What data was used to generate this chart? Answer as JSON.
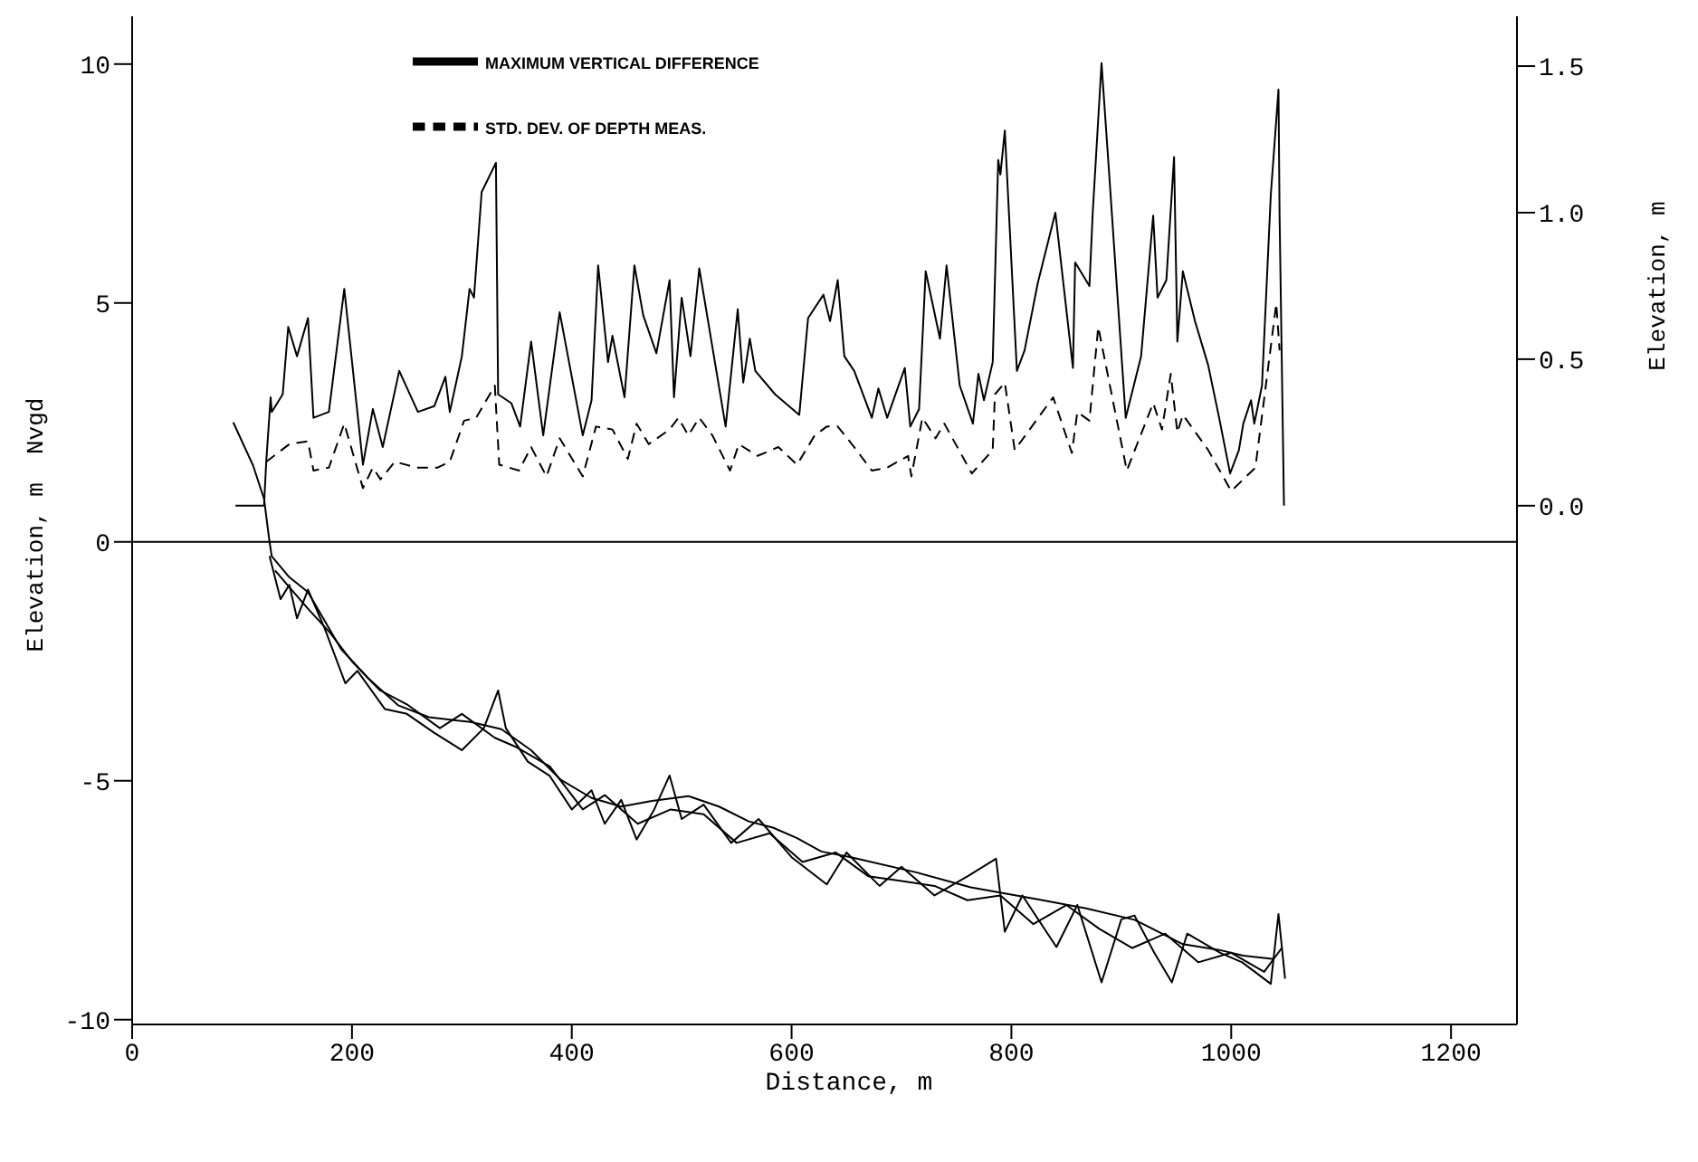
{
  "chart_data": {
    "type": "line",
    "xlabel": "Distance, m",
    "ylabel": "Elevation, m  Nvgd",
    "y2label": "Elevation, m",
    "xlim": [
      0,
      1260
    ],
    "xticks": [
      0,
      200,
      400,
      600,
      800,
      1000,
      1200
    ],
    "ylim": [
      -10.1,
      11
    ],
    "yticks": [
      -10,
      -5,
      0,
      5,
      10
    ],
    "y2lim": [
      -1.77,
      1.67
    ],
    "y2ticks": [
      {
        "value": 0,
        "label": "0.0"
      },
      {
        "value": 0.5,
        "label": "0.5"
      },
      {
        "value": 1,
        "label": "1.0"
      },
      {
        "value": 1.5,
        "label": "1.5"
      }
    ],
    "grid": false,
    "legend": "top",
    "marker": "none",
    "ref_lines": [
      {
        "axis": "y",
        "value": 0,
        "color": "#000000"
      }
    ],
    "series": [
      {
        "name": "MAXIMUM VERTICAL DIFFERENCE",
        "axis": "y2",
        "color": "#000000",
        "line_style": "solid",
        "x": [
          94,
          120,
          122,
          126,
          127,
          137,
          142,
          150,
          160,
          165,
          179,
          193,
          210,
          219,
          228,
          243,
          260,
          275,
          285,
          289,
          300,
          307,
          311,
          318,
          331,
          333,
          345,
          353,
          363,
          374,
          389,
          410,
          418,
          424,
          433,
          437,
          448,
          457,
          465,
          477,
          489,
          493,
          500,
          508,
          516,
          528,
          540,
          551,
          556,
          562,
          567,
          585,
          607,
          615,
          629,
          635,
          642,
          648,
          657,
          673,
          679,
          687,
          703,
          708,
          716,
          722,
          735,
          741,
          753,
          765,
          770,
          775,
          783,
          788,
          790,
          794,
          805,
          812,
          824,
          840,
          856,
          858,
          871,
          874,
          882,
          889,
          904,
          918,
          929,
          933,
          941,
          948,
          951,
          956,
          967,
          979,
          989,
          999,
          1007,
          1011,
          1018,
          1021,
          1028,
          1036,
          1043,
          1044,
          1048
        ],
        "values": [
          0,
          0,
          0.15,
          0.37,
          0.32,
          0.38,
          0.61,
          0.51,
          0.64,
          0.3,
          0.32,
          0.74,
          0.14,
          0.33,
          0.2,
          0.46,
          0.32,
          0.34,
          0.44,
          0.32,
          0.51,
          0.74,
          0.71,
          1.07,
          1.17,
          0.38,
          0.35,
          0.27,
          0.56,
          0.24,
          0.66,
          0.24,
          0.36,
          0.82,
          0.49,
          0.58,
          0.37,
          0.82,
          0.65,
          0.52,
          0.77,
          0.37,
          0.71,
          0.51,
          0.81,
          0.54,
          0.27,
          0.67,
          0.42,
          0.57,
          0.46,
          0.38,
          0.31,
          0.64,
          0.72,
          0.63,
          0.77,
          0.51,
          0.46,
          0.3,
          0.4,
          0.3,
          0.47,
          0.27,
          0.33,
          0.8,
          0.57,
          0.82,
          0.41,
          0.28,
          0.45,
          0.36,
          0.49,
          1.18,
          1.13,
          1.28,
          0.46,
          0.53,
          0.76,
          1,
          0.47,
          0.83,
          0.75,
          1,
          1.51,
          1.13,
          0.3,
          0.51,
          0.99,
          0.71,
          0.77,
          1.19,
          0.56,
          0.8,
          0.63,
          0.48,
          0.3,
          0.11,
          0.19,
          0.28,
          0.36,
          0.28,
          0.41,
          1.06,
          1.42,
          0.99,
          0
        ]
      },
      {
        "name": "STD. DEV. OF DEPTH MEAS.",
        "axis": "y2",
        "color": "#000000",
        "line_style": "dashed",
        "x": [
          122,
          143,
          160,
          165,
          179,
          193,
          210,
          219,
          226,
          239,
          259,
          278,
          289,
          302,
          313,
          330,
          334,
          352,
          363,
          377,
          389,
          410,
          422,
          437,
          451,
          459,
          470,
          489,
          497,
          506,
          516,
          528,
          544,
          552,
          569,
          588,
          605,
          621,
          632,
          642,
          657,
          673,
          687,
          706,
          709,
          719,
          731,
          739,
          764,
          783,
          785,
          794,
          803,
          838,
          855,
          860,
          871,
          879,
          905,
          929,
          937,
          945,
          951,
          956,
          979,
          1000,
          1022,
          1041,
          1044
        ],
        "values": [
          0.15,
          0.21,
          0.22,
          0.12,
          0.13,
          0.28,
          0.06,
          0.13,
          0.09,
          0.15,
          0.13,
          0.13,
          0.15,
          0.29,
          0.3,
          0.41,
          0.14,
          0.12,
          0.2,
          0.1,
          0.23,
          0.1,
          0.27,
          0.26,
          0.16,
          0.28,
          0.21,
          0.26,
          0.3,
          0.24,
          0.3,
          0.24,
          0.12,
          0.21,
          0.17,
          0.2,
          0.14,
          0.24,
          0.27,
          0.27,
          0.2,
          0.12,
          0.13,
          0.17,
          0.1,
          0.3,
          0.23,
          0.28,
          0.11,
          0.19,
          0.38,
          0.42,
          0.19,
          0.37,
          0.18,
          0.32,
          0.29,
          0.61,
          0.12,
          0.35,
          0.26,
          0.45,
          0.25,
          0.31,
          0.19,
          0.05,
          0.13,
          0.69,
          0.53
        ]
      },
      {
        "color": "#000000",
        "line_style": "solid",
        "x": [
          92,
          110,
          120,
          125,
          127,
          143,
          160,
          190,
          215,
          242,
          270,
          308,
          336,
          363,
          390,
          418,
          445,
          473,
          506,
          534,
          561,
          583,
          605,
          627,
          654,
          714,
          763,
          824,
          868,
          912,
          956,
          989,
          1011,
          1039
        ],
        "values": [
          2.5,
          1.6,
          0.9,
          0,
          -0.3,
          -0.74,
          -1.05,
          -2.24,
          -2.86,
          -3.42,
          -3.67,
          -3.77,
          -3.92,
          -4.36,
          -4.98,
          -5.36,
          -5.54,
          -5.42,
          -5.32,
          -5.54,
          -5.85,
          -5.98,
          -6.2,
          -6.48,
          -6.6,
          -6.92,
          -7.23,
          -7.48,
          -7.67,
          -7.91,
          -8.42,
          -8.54,
          -8.66,
          -8.73
        ]
      },
      {
        "color": "#000000",
        "line_style": "solid",
        "x": [
          125,
          135,
          143,
          150,
          160,
          175,
          194,
          205,
          230,
          250,
          275,
          300,
          320,
          333,
          340,
          360,
          380,
          400,
          418,
          430,
          445,
          459,
          475,
          489,
          500,
          520,
          545,
          570,
          600,
          632,
          650,
          680,
          700,
          730,
          760,
          786,
          794,
          810,
          841,
          860,
          882,
          900,
          912,
          930,
          946,
          960,
          990,
          1010,
          1036,
          1043,
          1049
        ],
        "values": [
          -0.3,
          -1.2,
          -0.9,
          -1.6,
          -1,
          -1.8,
          -2.96,
          -2.7,
          -3.5,
          -3.6,
          -4,
          -4.36,
          -3.9,
          -3.11,
          -3.9,
          -4.6,
          -4.9,
          -5.6,
          -5.2,
          -5.9,
          -5.4,
          -6.23,
          -5.6,
          -4.89,
          -5.8,
          -5.5,
          -6.3,
          -5.8,
          -6.6,
          -7.17,
          -6.5,
          -7.2,
          -6.8,
          -7.4,
          -7,
          -6.63,
          -8.16,
          -7.4,
          -8.48,
          -7.6,
          -9.22,
          -7.9,
          -7.82,
          -8.6,
          -9.22,
          -8.2,
          -8.6,
          -8.8,
          -9.25,
          -7.79,
          -9.14
        ]
      },
      {
        "color": "#000000",
        "line_style": "solid",
        "x": [
          130,
          145,
          160,
          180,
          200,
          225,
          250,
          280,
          300,
          330,
          350,
          380,
          410,
          430,
          460,
          490,
          520,
          550,
          580,
          610,
          640,
          670,
          700,
          730,
          760,
          790,
          820,
          850,
          880,
          910,
          940,
          970,
          1000,
          1030,
          1046
        ],
        "values": [
          -0.6,
          -1,
          -1.4,
          -1.9,
          -2.5,
          -3.1,
          -3.4,
          -3.9,
          -3.6,
          -4.1,
          -4.3,
          -4.7,
          -5.6,
          -5.3,
          -5.9,
          -5.6,
          -5.7,
          -6.3,
          -6.1,
          -6.7,
          -6.5,
          -7,
          -7.1,
          -7.2,
          -7.5,
          -7.4,
          -8,
          -7.6,
          -8.1,
          -8.5,
          -8.2,
          -8.8,
          -8.6,
          -9,
          -8.5
        ]
      }
    ]
  }
}
